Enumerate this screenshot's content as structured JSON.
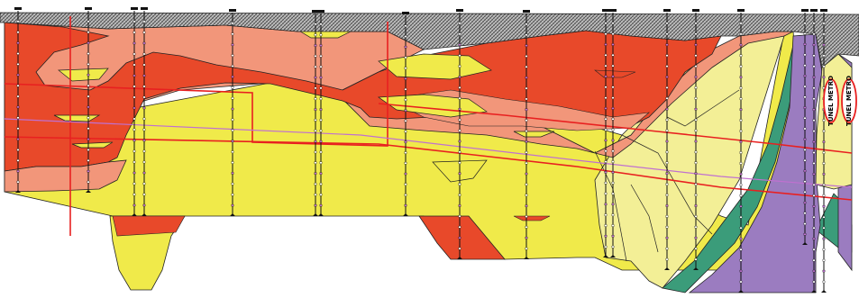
{
  "tunnel_labels": [
    "TUNEL METRO",
    "TUNEL METRO"
  ],
  "colors": {
    "fill_hatch": "#8c8c8c",
    "clay_dark_red": "#e8492a",
    "clay_salmon": "#f2967a",
    "sand_yellow": "#f0ea4a",
    "sand_pale": "#f3ef96",
    "gravel_green": "#3b9c7a",
    "marl_violet": "#9b7cc0",
    "tunnel_red": "#e82020",
    "profile_violet": "#c070d0",
    "borehole": "#111111"
  },
  "boreholes": [
    {
      "x": 20,
      "top": 12,
      "bottom": 214
    },
    {
      "x": 98,
      "top": 12,
      "bottom": 214
    },
    {
      "x": 149,
      "top": 12,
      "bottom": 240
    },
    {
      "x": 160,
      "top": 12,
      "bottom": 240
    },
    {
      "x": 258,
      "top": 14,
      "bottom": 240
    },
    {
      "x": 350,
      "top": 15,
      "bottom": 240
    },
    {
      "x": 356,
      "top": 15,
      "bottom": 240
    },
    {
      "x": 450,
      "top": 17,
      "bottom": 240
    },
    {
      "x": 510,
      "top": 14,
      "bottom": 288
    },
    {
      "x": 584,
      "top": 15,
      "bottom": 288
    },
    {
      "x": 672,
      "top": 14,
      "bottom": 286
    },
    {
      "x": 680,
      "top": 14,
      "bottom": 286
    },
    {
      "x": 740,
      "top": 14,
      "bottom": 300
    },
    {
      "x": 772,
      "top": 14,
      "bottom": 300
    },
    {
      "x": 822,
      "top": 14,
      "bottom": 325
    },
    {
      "x": 893,
      "top": 14,
      "bottom": 272
    },
    {
      "x": 903,
      "top": 14,
      "bottom": 325
    },
    {
      "x": 914,
      "top": 14,
      "bottom": 325
    }
  ]
}
